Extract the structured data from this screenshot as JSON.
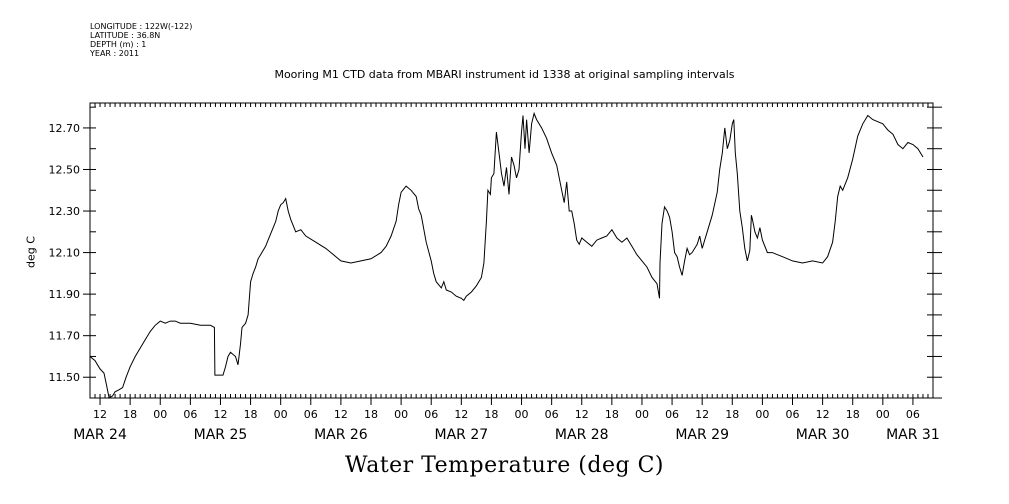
{
  "header": {
    "longitude": "LONGITUDE : 122W(-122)",
    "latitude": "LATITUDE : 36.8N",
    "depth": "DEPTH (m) : 1",
    "year": "YEAR : 2011"
  },
  "chart_data": {
    "type": "line",
    "title": "Mooring M1 CTD data from MBARI instrument id 1338 at original sampling intervals",
    "bottom_title": "Water Temperature (deg C)",
    "ylabel": "deg C",
    "xlabel": "",
    "x_unit": "hours since MAR 24 2011 00:00",
    "xlim": [
      10,
      178
    ],
    "ylim": [
      11.4,
      12.82
    ],
    "y_ticks": [
      11.5,
      11.7,
      11.9,
      12.1,
      12.3,
      12.5,
      12.7
    ],
    "y_tick_labels": [
      "11.50",
      "11.70",
      "11.90",
      "12.10",
      "12.30",
      "12.50",
      "12.70"
    ],
    "x_hour_ticks": [
      12,
      18,
      24,
      30,
      36,
      42,
      48,
      54,
      60,
      66,
      72,
      78,
      84,
      90,
      96,
      102,
      108,
      114,
      120,
      126,
      132,
      138,
      144,
      150,
      156,
      162,
      168,
      174
    ],
    "x_hour_labels": [
      "12",
      "18",
      "00",
      "06",
      "12",
      "18",
      "00",
      "06",
      "12",
      "18",
      "00",
      "06",
      "12",
      "18",
      "00",
      "06",
      "12",
      "18",
      "00",
      "06",
      "12",
      "18",
      "00",
      "06",
      "12",
      "18",
      "00",
      "06"
    ],
    "date_labels": [
      {
        "label": "MAR 24",
        "at": 12
      },
      {
        "label": "MAR 25",
        "at": 36
      },
      {
        "label": "MAR 26",
        "at": 60
      },
      {
        "label": "MAR 27",
        "at": 84
      },
      {
        "label": "MAR 28",
        "at": 108
      },
      {
        "label": "MAR 29",
        "at": 132
      },
      {
        "label": "MAR 30",
        "at": 156
      },
      {
        "label": "MAR 31",
        "at": 174
      }
    ],
    "grid": false,
    "series": [
      {
        "points": [
          [
            10.0,
            11.6
          ],
          [
            11.0,
            11.58
          ],
          [
            12.0,
            11.54
          ],
          [
            12.8,
            11.52
          ],
          [
            13.3,
            11.46
          ],
          [
            13.8,
            11.4
          ],
          [
            14.5,
            11.41
          ],
          [
            15.0,
            11.43
          ],
          [
            15.8,
            11.44
          ],
          [
            16.5,
            11.45
          ],
          [
            17.2,
            11.5
          ],
          [
            18.0,
            11.55
          ],
          [
            19.0,
            11.6
          ],
          [
            20.0,
            11.64
          ],
          [
            21.0,
            11.68
          ],
          [
            22.0,
            11.72
          ],
          [
            23.0,
            11.75
          ],
          [
            24.0,
            11.77
          ],
          [
            25.0,
            11.76
          ],
          [
            26.0,
            11.77
          ],
          [
            27.0,
            11.77
          ],
          [
            28.0,
            11.76
          ],
          [
            30.0,
            11.76
          ],
          [
            32.0,
            11.75
          ],
          [
            34.0,
            11.75
          ],
          [
            34.8,
            11.74
          ],
          [
            34.9,
            11.51
          ],
          [
            35.5,
            11.51
          ],
          [
            36.5,
            11.51
          ],
          [
            37.0,
            11.55
          ],
          [
            37.5,
            11.6
          ],
          [
            38.0,
            11.62
          ],
          [
            39.0,
            11.6
          ],
          [
            39.5,
            11.56
          ],
          [
            39.8,
            11.62
          ],
          [
            40.0,
            11.66
          ],
          [
            40.3,
            11.74
          ],
          [
            41.0,
            11.76
          ],
          [
            41.5,
            11.8
          ],
          [
            42.0,
            11.96
          ],
          [
            42.5,
            12.0
          ],
          [
            43.0,
            12.03
          ],
          [
            43.5,
            12.07
          ],
          [
            44.0,
            12.09
          ],
          [
            44.5,
            12.11
          ],
          [
            45.0,
            12.13
          ],
          [
            45.5,
            12.16
          ],
          [
            46.0,
            12.19
          ],
          [
            46.5,
            12.22
          ],
          [
            47.0,
            12.25
          ],
          [
            47.5,
            12.3
          ],
          [
            48.0,
            12.33
          ],
          [
            48.5,
            12.34
          ],
          [
            49.0,
            12.36
          ],
          [
            49.5,
            12.3
          ],
          [
            50.0,
            12.26
          ],
          [
            50.5,
            12.23
          ],
          [
            51.0,
            12.2
          ],
          [
            52.0,
            12.21
          ],
          [
            53.0,
            12.18
          ],
          [
            55.0,
            12.15
          ],
          [
            57.0,
            12.12
          ],
          [
            59.0,
            12.08
          ],
          [
            60.0,
            12.06
          ],
          [
            62.0,
            12.05
          ],
          [
            64.0,
            12.06
          ],
          [
            66.0,
            12.07
          ],
          [
            68.0,
            12.1
          ],
          [
            69.0,
            12.13
          ],
          [
            70.0,
            12.18
          ],
          [
            71.0,
            12.25
          ],
          [
            71.5,
            12.33
          ],
          [
            72.0,
            12.39
          ],
          [
            73.0,
            12.42
          ],
          [
            74.0,
            12.4
          ],
          [
            75.0,
            12.37
          ],
          [
            75.5,
            12.31
          ],
          [
            76.0,
            12.28
          ],
          [
            77.0,
            12.15
          ],
          [
            78.0,
            12.06
          ],
          [
            78.5,
            12.0
          ],
          [
            79.0,
            11.96
          ],
          [
            80.0,
            11.93
          ],
          [
            80.5,
            11.96
          ],
          [
            81.0,
            11.92
          ],
          [
            82.0,
            11.91
          ],
          [
            83.0,
            11.89
          ],
          [
            84.0,
            11.88
          ],
          [
            84.5,
            11.87
          ],
          [
            85.0,
            11.89
          ],
          [
            86.0,
            11.91
          ],
          [
            87.0,
            11.94
          ],
          [
            88.0,
            11.98
          ],
          [
            88.5,
            12.05
          ],
          [
            89.0,
            12.25
          ],
          [
            89.3,
            12.4
          ],
          [
            89.8,
            12.38
          ],
          [
            90.0,
            12.46
          ],
          [
            90.5,
            12.48
          ],
          [
            91.0,
            12.68
          ],
          [
            91.5,
            12.58
          ],
          [
            92.0,
            12.48
          ],
          [
            92.5,
            12.42
          ],
          [
            93.0,
            12.51
          ],
          [
            93.5,
            12.38
          ],
          [
            94.0,
            12.56
          ],
          [
            94.5,
            12.52
          ],
          [
            95.0,
            12.46
          ],
          [
            95.5,
            12.5
          ],
          [
            96.0,
            12.68
          ],
          [
            96.3,
            12.76
          ],
          [
            96.7,
            12.6
          ],
          [
            97.0,
            12.74
          ],
          [
            97.5,
            12.58
          ],
          [
            98.0,
            12.72
          ],
          [
            98.5,
            12.77
          ],
          [
            99.0,
            12.74
          ],
          [
            100.0,
            12.7
          ],
          [
            101.0,
            12.65
          ],
          [
            102.0,
            12.58
          ],
          [
            103.0,
            12.52
          ],
          [
            104.0,
            12.4
          ],
          [
            104.5,
            12.34
          ],
          [
            105.0,
            12.44
          ],
          [
            105.5,
            12.3
          ],
          [
            106.0,
            12.3
          ],
          [
            106.5,
            12.24
          ],
          [
            107.0,
            12.16
          ],
          [
            107.5,
            12.14
          ],
          [
            108.0,
            12.17
          ],
          [
            109.0,
            12.15
          ],
          [
            110.0,
            12.13
          ],
          [
            111.0,
            12.16
          ],
          [
            112.0,
            12.17
          ],
          [
            113.0,
            12.18
          ],
          [
            114.0,
            12.21
          ],
          [
            115.0,
            12.17
          ],
          [
            116.0,
            12.15
          ],
          [
            117.0,
            12.17
          ],
          [
            118.0,
            12.13
          ],
          [
            119.0,
            12.09
          ],
          [
            120.0,
            12.06
          ],
          [
            121.0,
            12.03
          ],
          [
            122.0,
            11.98
          ],
          [
            123.0,
            11.95
          ],
          [
            123.5,
            11.88
          ],
          [
            123.6,
            12.05
          ],
          [
            124.0,
            12.24
          ],
          [
            124.5,
            12.32
          ],
          [
            125.0,
            12.3
          ],
          [
            125.5,
            12.27
          ],
          [
            126.0,
            12.2
          ],
          [
            126.5,
            12.1
          ],
          [
            127.0,
            12.08
          ],
          [
            127.5,
            12.03
          ],
          [
            128.0,
            11.99
          ],
          [
            128.5,
            12.06
          ],
          [
            129.0,
            12.12
          ],
          [
            129.5,
            12.09
          ],
          [
            130.0,
            12.1
          ],
          [
            131.0,
            12.14
          ],
          [
            131.5,
            12.18
          ],
          [
            132.0,
            12.12
          ],
          [
            133.0,
            12.2
          ],
          [
            134.0,
            12.28
          ],
          [
            135.0,
            12.39
          ],
          [
            135.5,
            12.5
          ],
          [
            136.0,
            12.58
          ],
          [
            136.5,
            12.7
          ],
          [
            137.0,
            12.6
          ],
          [
            137.5,
            12.64
          ],
          [
            138.0,
            12.72
          ],
          [
            138.3,
            12.74
          ],
          [
            138.6,
            12.58
          ],
          [
            139.0,
            12.48
          ],
          [
            139.5,
            12.3
          ],
          [
            140.0,
            12.22
          ],
          [
            140.5,
            12.12
          ],
          [
            141.0,
            12.06
          ],
          [
            141.5,
            12.11
          ],
          [
            141.8,
            12.28
          ],
          [
            142.0,
            12.26
          ],
          [
            142.5,
            12.2
          ],
          [
            143.0,
            12.17
          ],
          [
            143.5,
            12.22
          ],
          [
            144.0,
            12.16
          ],
          [
            145.0,
            12.1
          ],
          [
            146.0,
            12.1
          ],
          [
            147.0,
            12.09
          ],
          [
            148.0,
            12.08
          ],
          [
            150.0,
            12.06
          ],
          [
            152.0,
            12.05
          ],
          [
            154.0,
            12.06
          ],
          [
            156.0,
            12.05
          ],
          [
            157.0,
            12.08
          ],
          [
            158.0,
            12.15
          ],
          [
            158.5,
            12.25
          ],
          [
            159.0,
            12.37
          ],
          [
            159.5,
            12.42
          ],
          [
            160.0,
            12.4
          ],
          [
            161.0,
            12.46
          ],
          [
            162.0,
            12.55
          ],
          [
            163.0,
            12.66
          ],
          [
            164.0,
            12.72
          ],
          [
            165.0,
            12.76
          ],
          [
            166.0,
            12.74
          ],
          [
            167.0,
            12.73
          ],
          [
            168.0,
            12.72
          ],
          [
            169.0,
            12.69
          ],
          [
            170.0,
            12.67
          ],
          [
            171.0,
            12.62
          ],
          [
            172.0,
            12.6
          ],
          [
            173.0,
            12.63
          ],
          [
            174.0,
            12.62
          ],
          [
            175.0,
            12.6
          ],
          [
            176.0,
            12.56
          ]
        ]
      }
    ]
  }
}
